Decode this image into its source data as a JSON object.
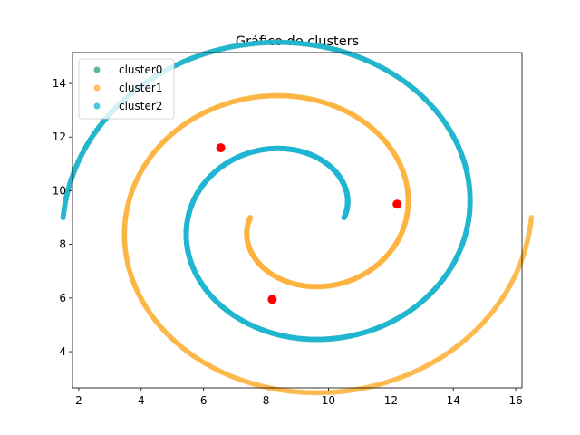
{
  "chart_data": {
    "type": "scatter",
    "title": "Gráfico de clusters",
    "xlabel": "",
    "ylabel": "",
    "xlim": [
      1.8,
      16.2
    ],
    "ylim": [
      2.65,
      15.15
    ],
    "xticks": [
      2,
      4,
      6,
      8,
      10,
      12,
      14,
      16
    ],
    "yticks": [
      4,
      6,
      8,
      10,
      12,
      14
    ],
    "grid": false,
    "legend_position": "top-left",
    "spiral_center": [
      9.0,
      9.0
    ],
    "series": [
      {
        "name": "cluster0",
        "color": "#3aa57e",
        "arms": [
          {
            "radius_start": 1.5,
            "radius_end": 3.5,
            "angle_start": 0,
            "angle_end": 180
          },
          {
            "radius_start": 3.5,
            "radius_end": 5.5,
            "angle_start": 180,
            "angle_end": 360
          },
          {
            "radius_start": 5.5,
            "radius_end": 7.5,
            "angle_start": 0,
            "angle_end": 180
          }
        ]
      },
      {
        "name": "cluster1",
        "color": "#fbb33f",
        "arms": [
          {
            "radius_start": 1.5,
            "radius_end": 3.5,
            "angle_start": 180,
            "angle_end": 360
          },
          {
            "radius_start": 3.5,
            "radius_end": 5.5,
            "angle_start": 0,
            "angle_end": 180
          },
          {
            "radius_start": 5.5,
            "radius_end": 7.5,
            "angle_start": 180,
            "angle_end": 360
          }
        ]
      },
      {
        "name": "cluster2",
        "color": "#1fb6d4",
        "arms": [
          {
            "radius_start": 1.5,
            "radius_end": 3.5,
            "angle_start": 0,
            "angle_end": 180
          },
          {
            "radius_start": 3.5,
            "radius_end": 5.5,
            "angle_start": 180,
            "angle_end": 360
          },
          {
            "radius_start": 5.5,
            "radius_end": 7.5,
            "angle_start": 0,
            "angle_end": 180
          }
        ]
      }
    ],
    "centroids": {
      "color": "#ff0000",
      "points": [
        {
          "x": 6.55,
          "y": 11.6
        },
        {
          "x": 12.2,
          "y": 9.5
        },
        {
          "x": 8.2,
          "y": 5.95
        }
      ]
    }
  }
}
